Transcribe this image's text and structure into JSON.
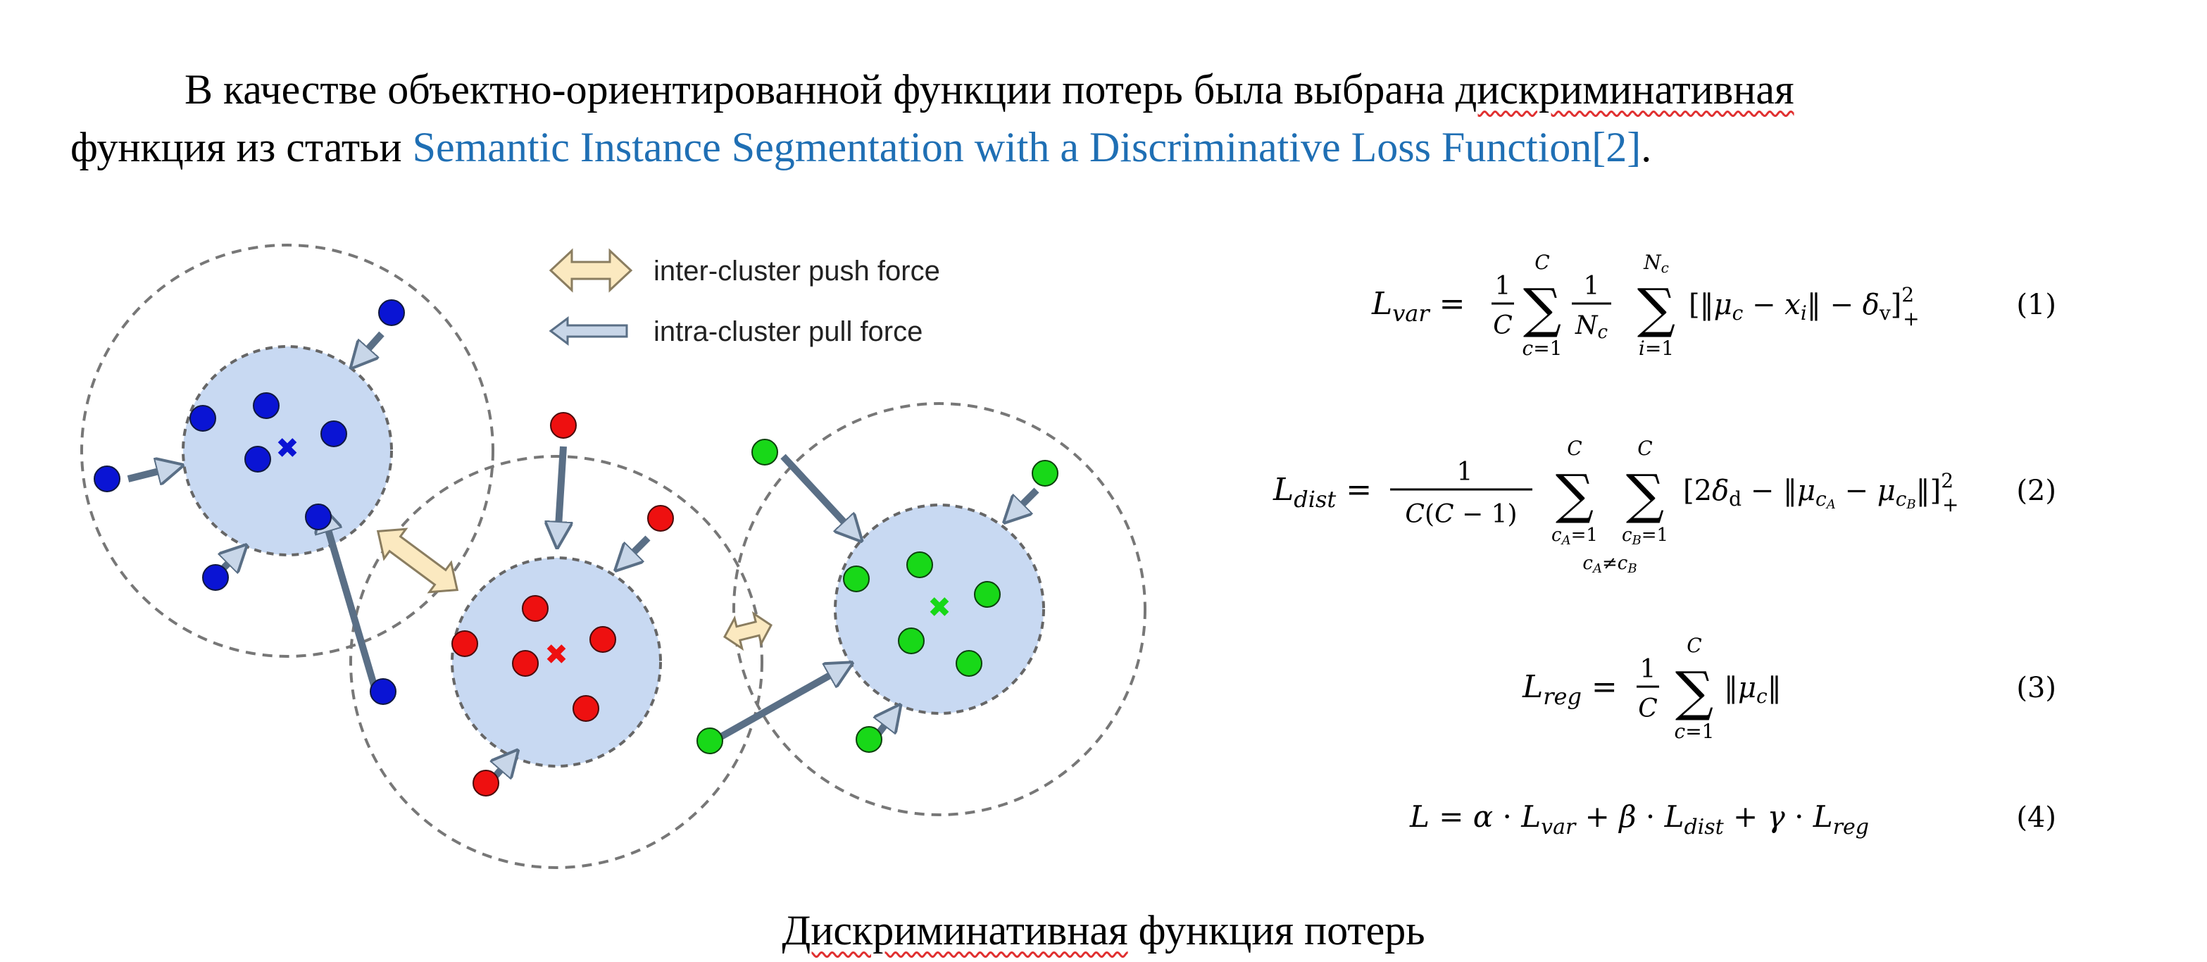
{
  "paragraph": {
    "text_before": "В качестве объектно-ориентированной функции потерь была выбрана ",
    "misspelled_word": "дискриминативная",
    "line2_before": "функция из статьи ",
    "link_text": "Semantic Instance Segmentation with a Discriminative Loss Function",
    "citation": "[2]",
    "end_punct": "."
  },
  "figure": {
    "legend": {
      "push": "inter-cluster push force",
      "pull": "intra-cluster pull force"
    },
    "cluster_colors": {
      "blue": "#0a14d4",
      "red": "#ee1010",
      "green": "#18d818"
    },
    "equations": [
      {
        "lhs": "L_var",
        "number": "(1)"
      },
      {
        "lhs": "L_dist",
        "number": "(2)"
      },
      {
        "lhs": "L_reg",
        "number": "(3)"
      },
      {
        "lhs": "L",
        "number": "(4)"
      }
    ]
  },
  "caption": {
    "misspelled_word": "Дискриминативная",
    "rest": " функция потерь"
  }
}
